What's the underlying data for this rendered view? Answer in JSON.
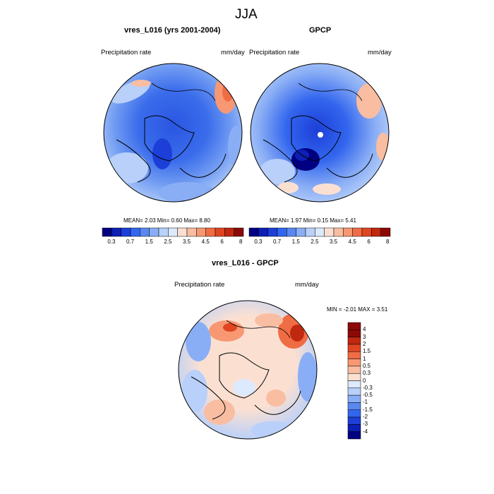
{
  "figure": {
    "title": "JJA"
  },
  "panels": [
    {
      "title": "vres_L016 (yrs 2001-2004)",
      "variable": "Precipitation rate",
      "units": "mm/day",
      "stats": {
        "mean": "2.03",
        "min": "0.60",
        "max": "8.80",
        "text": "MEAN=  2.03  Min=   0.60  Max=   8.80"
      },
      "colorbar_labels": [
        "0.3",
        "0.7",
        "1.5",
        "2.5",
        "3.5",
        "4.5",
        "6",
        "8"
      ]
    },
    {
      "title": "GPCP",
      "variable": "Precipitation rate",
      "units": "mm/day",
      "stats": {
        "mean": "1.97",
        "min": "0.15",
        "max": "5.41",
        "text": "MEAN=  1.97  Min=   0.15  Max=   5.41"
      },
      "colorbar_labels": [
        "0.3",
        "0.7",
        "1.5",
        "2.5",
        "3.5",
        "4.5",
        "6",
        "8"
      ]
    },
    {
      "title": "vres_L016 - GPCP",
      "variable": "Precipitation rate",
      "units": "mm/day",
      "stats": {
        "min": "-2.01",
        "max": "3.51",
        "text": "MIN =  -2.01 MAX =   3.51"
      },
      "colorbar_labels": [
        "4",
        "3",
        "2",
        "1.5",
        "1",
        "0.5",
        "0.3",
        "0",
        "-0.3",
        "-0.5",
        "-1",
        "-1.5",
        "-2",
        "-3",
        "-4"
      ]
    }
  ],
  "colors": {
    "abs_scale": [
      "#000080",
      "#0d1fb4",
      "#1c3fd8",
      "#3366ee",
      "#5a88f0",
      "#8aaef5",
      "#b8d0fa",
      "#dde9fc",
      "#fbe0d2",
      "#f9bda2",
      "#f79873",
      "#f06c45",
      "#e04522",
      "#c02810",
      "#8b0a05"
    ],
    "diff_scale": [
      "#8b0a05",
      "#c02810",
      "#e04522",
      "#f06c45",
      "#f79873",
      "#f9bda2",
      "#fbe0d2",
      "#dde9fc",
      "#b8d0fa",
      "#8aaef5",
      "#5a88f0",
      "#3366ee",
      "#1c3fd8",
      "#0d1fb4",
      "#000080"
    ]
  }
}
